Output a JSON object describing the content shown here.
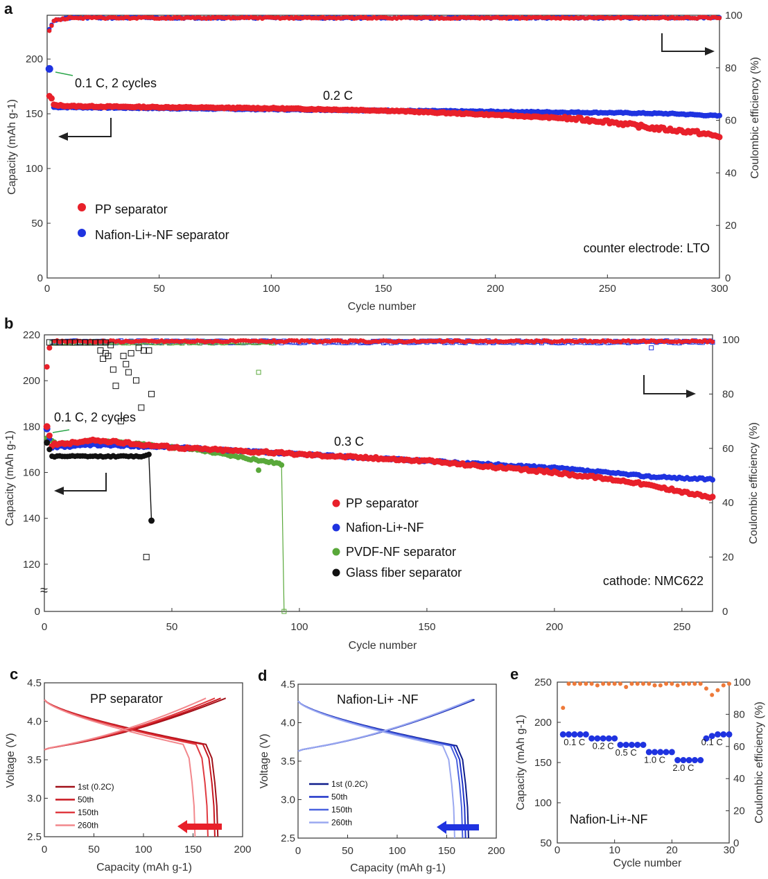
{
  "panels": {
    "a": {
      "label": "a",
      "xlabel": "Cycle number",
      "ylabel_left": "Capacity (mAh g-1)",
      "ylabel_right": "Coulombic efficiency (%)",
      "xticks": [
        "0",
        "50",
        "100",
        "150",
        "200",
        "250",
        "300"
      ],
      "yticks_left": [
        "0",
        "50",
        "100",
        "150",
        "200"
      ],
      "yticks_right": [
        "0",
        "20",
        "40",
        "60",
        "80",
        "100"
      ],
      "annotation_rate1": "0.1 C, 2 cycles",
      "annotation_rate2": "0.2 C",
      "annotation_counter": "counter electrode: LTO",
      "legend": [
        "PP separator",
        "Nafion-Li+-NF separator"
      ]
    },
    "b": {
      "label": "b",
      "xlabel": "Cycle number",
      "ylabel_left": "Capacity (mAh g-1)",
      "ylabel_right": "Coulombic efficiency (%)",
      "xticks": [
        "0",
        "50",
        "100",
        "150",
        "200",
        "250"
      ],
      "yticks_left": [
        "0",
        "120",
        "140",
        "160",
        "180",
        "200",
        "220"
      ],
      "yticks_right": [
        "0",
        "20",
        "40",
        "60",
        "80",
        "100"
      ],
      "axis_break": "≈",
      "annotation_rate1": "0.1 C, 2 cycles",
      "annotation_rate2": "0.3 C",
      "annotation_cathode": "cathode: NMC622",
      "legend": [
        "PP separator",
        "Nafion-Li+-NF",
        "PVDF-NF separator",
        "Glass fiber separator"
      ]
    },
    "c": {
      "label": "c",
      "title": "PP separator",
      "xlabel": "Capacity (mAh g-1)",
      "ylabel": "Voltage (V)",
      "xticks": [
        "0",
        "50",
        "100",
        "150",
        "200"
      ],
      "yticks": [
        "2.5",
        "3.0",
        "3.5",
        "4.0",
        "4.5"
      ],
      "legend": [
        "1st (0.2C)",
        "50th",
        "150th",
        "260th"
      ]
    },
    "d": {
      "label": "d",
      "title": "Nafion-Li+ -NF",
      "xlabel": "Capacity (mAh g-1)",
      "ylabel": "Voltage (V)",
      "xticks": [
        "0",
        "50",
        "100",
        "150",
        "200"
      ],
      "yticks": [
        "2.5",
        "3.0",
        "3.5",
        "4.0",
        "4.5"
      ],
      "legend": [
        "1st (0.2C)",
        "50th",
        "150th",
        "260th"
      ]
    },
    "e": {
      "label": "e",
      "title": "Nafion-Li+-NF",
      "xlabel": "Cycle number",
      "ylabel_left": "Capacity (mAh g-1)",
      "ylabel_right": "Coulombic efficiency (%)",
      "xticks": [
        "0",
        "10",
        "20",
        "30"
      ],
      "yticks_left": [
        "50",
        "100",
        "150",
        "200",
        "250"
      ],
      "yticks_right": [
        "0",
        "20",
        "40",
        "60",
        "80",
        "100"
      ],
      "rate_labels": [
        "0.1 C",
        "0.2 C",
        "0.5 C",
        "1.0 C",
        "2.0 C",
        "0.1 C"
      ]
    }
  },
  "colors": {
    "pp": "#e8202a",
    "nafion": "#1f33e0",
    "pvdf": "#59a83a",
    "glass": "#111111",
    "ce_orange": "#ee7a3a"
  },
  "chart_data": [
    {
      "panel": "a",
      "type": "scatter",
      "xlim": [
        0,
        300
      ],
      "ylim_left": [
        0,
        240
      ],
      "ylim_right": [
        0,
        100
      ],
      "series": [
        {
          "name": "PP separator capacity",
          "axis": "left",
          "points": [
            [
              1,
              166
            ],
            [
              2,
              164
            ],
            [
              3,
              158
            ],
            [
              10,
              157
            ],
            [
              50,
              156
            ],
            [
              100,
              155
            ],
            [
              150,
              153
            ],
            [
              200,
              149
            ],
            [
              230,
              146
            ],
            [
              250,
              143
            ],
            [
              270,
              137
            ],
            [
              280,
              135
            ],
            [
              290,
              133
            ],
            [
              300,
              129
            ]
          ]
        },
        {
          "name": "Nafion-Li+-NF separator capacity",
          "axis": "left",
          "points": [
            [
              1,
              191
            ],
            [
              2,
              160
            ],
            [
              3,
              156
            ],
            [
              50,
              155
            ],
            [
              100,
              154
            ],
            [
              150,
              153
            ],
            [
              200,
              152
            ],
            [
              250,
              151
            ],
            [
              280,
              150
            ],
            [
              300,
              148
            ]
          ]
        },
        {
          "name": "PP separator CE",
          "axis": "right",
          "points": [
            [
              1,
              94
            ],
            [
              3,
              98
            ],
            [
              10,
              99
            ],
            [
              300,
              99
            ]
          ]
        },
        {
          "name": "Nafion-Li+-NF separator CE",
          "axis": "right",
          "points": [
            [
              1,
              95
            ],
            [
              3,
              98
            ],
            [
              10,
              99
            ],
            [
              300,
              99
            ]
          ]
        }
      ]
    },
    {
      "panel": "b",
      "type": "scatter",
      "xlim": [
        0,
        262
      ],
      "ylim_left_broken": [
        110,
        220
      ],
      "ylim_right": [
        0,
        100
      ],
      "series": [
        {
          "name": "PP separator capacity",
          "axis": "left",
          "points": [
            [
              1,
              180
            ],
            [
              3,
              172
            ],
            [
              20,
              174
            ],
            [
              50,
              171
            ],
            [
              100,
              168
            ],
            [
              150,
              165
            ],
            [
              200,
              160
            ],
            [
              230,
              156
            ],
            [
              262,
              149
            ]
          ]
        },
        {
          "name": "Nafion-Li+-NF capacity",
          "axis": "left",
          "points": [
            [
              1,
              179
            ],
            [
              3,
              171
            ],
            [
              20,
              172
            ],
            [
              50,
              171
            ],
            [
              100,
              168
            ],
            [
              150,
              165
            ],
            [
              200,
              162
            ],
            [
              240,
              158
            ],
            [
              262,
              157
            ]
          ]
        },
        {
          "name": "PVDF-NF separator capacity",
          "axis": "left",
          "points": [
            [
              1,
              175
            ],
            [
              5,
              172
            ],
            [
              20,
              174
            ],
            [
              40,
              172
            ],
            [
              60,
              170
            ],
            [
              80,
              166
            ],
            [
              92,
              164
            ],
            [
              93,
              163
            ],
            [
              94,
              0
            ]
          ]
        },
        {
          "name": "Glass fiber separator capacity",
          "axis": "left",
          "points": [
            [
              1,
              173
            ],
            [
              3,
              167
            ],
            [
              20,
              167
            ],
            [
              39,
              167
            ],
            [
              41,
              168
            ],
            [
              42,
              139
            ]
          ]
        },
        {
          "name": "PP separator CE",
          "axis": "right",
          "points": [
            [
              1,
              90
            ],
            [
              3,
              98
            ],
            [
              10,
              100
            ],
            [
              262,
              100
            ]
          ]
        },
        {
          "name": "Nafion-Li+-NF CE",
          "axis": "right",
          "points": [
            [
              3,
              98
            ],
            [
              10,
              100
            ],
            [
              262,
              99
            ]
          ]
        },
        {
          "name": "PVDF-NF separator CE",
          "axis": "right",
          "points": [
            [
              3,
              99
            ],
            [
              90,
              99
            ],
            [
              85,
              88
            ]
          ]
        },
        {
          "name": "Glass fiber separator CE",
          "axis": "right",
          "points": [
            [
              2,
              99
            ],
            [
              20,
              99
            ],
            [
              22,
              96
            ],
            [
              25,
              94
            ],
            [
              28,
              83
            ],
            [
              30,
              70
            ],
            [
              33,
              88
            ],
            [
              36,
              85
            ],
            [
              38,
              75
            ],
            [
              40,
              20
            ]
          ]
        }
      ]
    },
    {
      "panel": "c",
      "type": "line",
      "xlim": [
        0,
        200
      ],
      "ylim": [
        2.5,
        4.5
      ],
      "series": [
        {
          "name": "1st (0.2C)",
          "charge_end": [
            183,
            4.3
          ],
          "discharge_end": [
            175,
            2.5
          ]
        },
        {
          "name": "50th",
          "charge_end": [
            178,
            4.3
          ],
          "discharge_end": [
            172,
            2.5
          ]
        },
        {
          "name": "150th",
          "charge_end": [
            172,
            4.3
          ],
          "discharge_end": [
            165,
            2.5
          ]
        },
        {
          "name": "260th",
          "charge_end": [
            163,
            4.3
          ],
          "discharge_end": [
            152,
            2.5
          ]
        }
      ]
    },
    {
      "panel": "d",
      "type": "line",
      "xlim": [
        0,
        200
      ],
      "ylim": [
        2.5,
        4.5
      ],
      "series": [
        {
          "name": "1st (0.2C)",
          "charge_end": [
            178,
            4.3
          ],
          "discharge_end": [
            172,
            2.5
          ]
        },
        {
          "name": "50th",
          "charge_end": [
            177,
            4.3
          ],
          "discharge_end": [
            169,
            2.5
          ]
        },
        {
          "name": "150th",
          "charge_end": [
            176,
            4.3
          ],
          "discharge_end": [
            166,
            2.5
          ]
        },
        {
          "name": "260th",
          "charge_end": [
            175,
            4.3
          ],
          "discharge_end": [
            158,
            2.5
          ]
        }
      ]
    },
    {
      "panel": "e",
      "type": "scatter",
      "xlim": [
        0,
        30
      ],
      "ylim_left": [
        50,
        250
      ],
      "ylim_right": [
        0,
        100
      ],
      "capacity": [
        185,
        185,
        185,
        185,
        185,
        180,
        180,
        180,
        180,
        180,
        172,
        172,
        172,
        172,
        172,
        163,
        163,
        163,
        163,
        163,
        153,
        153,
        153,
        153,
        153,
        180,
        183,
        185,
        185,
        185
      ],
      "ce": [
        84,
        99,
        99,
        99,
        99,
        99,
        98,
        99,
        99,
        99,
        99,
        97,
        99,
        99,
        99,
        99,
        98,
        98,
        99,
        99,
        98,
        99,
        99,
        99,
        99,
        96,
        92,
        95,
        98,
        99
      ]
    }
  ]
}
